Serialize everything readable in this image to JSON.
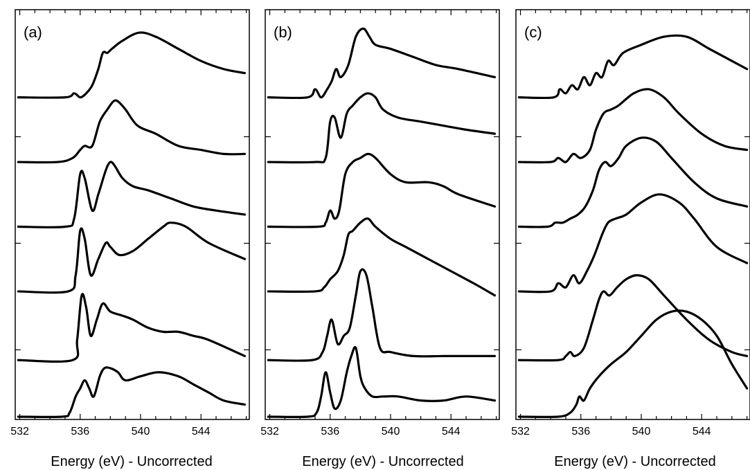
{
  "chart_data": [
    {
      "type": "line",
      "panel_label": "(a)",
      "xlabel": "Energy (eV) - Uncorrected",
      "ylabel": "",
      "xticks": [
        532,
        536,
        540,
        544
      ],
      "xlim": [
        531.7,
        547.2
      ],
      "ylim": [
        0,
        1
      ],
      "grid": false,
      "legend": "none",
      "color": "#000000",
      "series": [
        {
          "x": [
            531.9,
            535.0,
            535.6,
            536.0,
            536.4,
            536.8,
            537.2,
            537.5,
            537.8,
            538.1,
            538.8,
            539.9,
            541.0,
            542.5,
            544.0,
            545.5,
            546.9
          ],
          "values": [
            0.79,
            0.79,
            0.8,
            0.79,
            0.8,
            0.82,
            0.86,
            0.9,
            0.9,
            0.91,
            0.93,
            0.95,
            0.94,
            0.91,
            0.88,
            0.86,
            0.85
          ]
        },
        {
          "x": [
            531.9,
            534.5,
            535.5,
            536.0,
            536.3,
            536.8,
            537.3,
            537.8,
            538.2,
            538.5,
            539.0,
            539.8,
            541.0,
            542.5,
            544.0,
            545.5,
            546.9
          ],
          "values": [
            0.63,
            0.63,
            0.64,
            0.66,
            0.67,
            0.67,
            0.73,
            0.76,
            0.78,
            0.78,
            0.76,
            0.72,
            0.7,
            0.67,
            0.66,
            0.65,
            0.65
          ]
        },
        {
          "x": [
            531.9,
            535.0,
            535.6,
            536.0,
            536.3,
            536.8,
            537.2,
            537.7,
            538.0,
            538.3,
            538.8,
            539.5,
            540.5,
            542.0,
            543.5,
            545.0,
            546.9
          ],
          "values": [
            0.47,
            0.47,
            0.49,
            0.6,
            0.59,
            0.51,
            0.55,
            0.61,
            0.63,
            0.62,
            0.59,
            0.57,
            0.56,
            0.54,
            0.52,
            0.51,
            0.5
          ]
        },
        {
          "x": [
            531.9,
            535.2,
            535.7,
            536.0,
            536.3,
            536.7,
            537.2,
            537.7,
            538.0,
            538.6,
            539.5,
            540.5,
            541.5,
            542.0,
            543.0,
            544.5,
            546.9
          ],
          "values": [
            0.31,
            0.31,
            0.35,
            0.46,
            0.44,
            0.35,
            0.39,
            0.43,
            0.42,
            0.4,
            0.41,
            0.44,
            0.47,
            0.48,
            0.47,
            0.43,
            0.39
          ]
        },
        {
          "x": [
            531.9,
            535.5,
            535.8,
            536.1,
            536.4,
            536.7,
            537.1,
            537.5,
            538.0,
            538.8,
            539.5,
            540.5,
            541.5,
            542.5,
            543.5,
            544.5,
            546.9
          ],
          "values": [
            0.14,
            0.14,
            0.19,
            0.3,
            0.27,
            0.2,
            0.24,
            0.28,
            0.26,
            0.25,
            0.24,
            0.22,
            0.21,
            0.21,
            0.2,
            0.19,
            0.15
          ]
        },
        {
          "x": [
            531.9,
            534.8,
            535.3,
            535.7,
            536.0,
            536.3,
            536.6,
            536.9,
            537.3,
            537.6,
            538.0,
            538.5,
            539.0,
            540.0,
            541.2,
            542.5,
            543.5,
            544.5,
            545.5,
            546.9
          ],
          "values": [
            0.0,
            0.0,
            0.01,
            0.05,
            0.07,
            0.09,
            0.07,
            0.05,
            0.1,
            0.12,
            0.12,
            0.11,
            0.09,
            0.1,
            0.11,
            0.1,
            0.08,
            0.06,
            0.04,
            0.03
          ]
        }
      ]
    },
    {
      "type": "line",
      "panel_label": "(b)",
      "xlabel": "Energy (eV) - Uncorrected",
      "ylabel": "",
      "xticks": [
        532,
        536,
        540,
        544
      ],
      "xlim": [
        531.7,
        547.2
      ],
      "ylim": [
        0,
        1
      ],
      "grid": false,
      "legend": "none",
      "color": "#000000",
      "series": [
        {
          "x": [
            531.9,
            534.5,
            535.0,
            535.4,
            535.8,
            536.1,
            536.4,
            536.7,
            537.2,
            537.7,
            538.2,
            538.6,
            539.0,
            540.0,
            541.5,
            543.0,
            544.5,
            546.9
          ],
          "values": [
            0.79,
            0.79,
            0.81,
            0.79,
            0.81,
            0.83,
            0.86,
            0.84,
            0.87,
            0.94,
            0.96,
            0.94,
            0.92,
            0.91,
            0.89,
            0.87,
            0.86,
            0.84
          ]
        },
        {
          "x": [
            531.9,
            535.0,
            535.7,
            536.0,
            536.3,
            536.7,
            537.1,
            537.5,
            538.0,
            538.5,
            539.0,
            539.5,
            540.5,
            542.0,
            543.5,
            545.0,
            546.9
          ],
          "values": [
            0.63,
            0.63,
            0.64,
            0.73,
            0.74,
            0.69,
            0.75,
            0.77,
            0.79,
            0.8,
            0.79,
            0.76,
            0.74,
            0.73,
            0.72,
            0.71,
            0.7
          ]
        },
        {
          "x": [
            531.9,
            535.2,
            535.7,
            536.0,
            536.3,
            536.6,
            537.0,
            537.5,
            538.0,
            538.5,
            539.0,
            540.0,
            541.0,
            542.5,
            543.5,
            544.5,
            546.9
          ],
          "values": [
            0.47,
            0.47,
            0.48,
            0.51,
            0.49,
            0.51,
            0.6,
            0.63,
            0.64,
            0.65,
            0.64,
            0.6,
            0.58,
            0.58,
            0.57,
            0.55,
            0.52
          ]
        },
        {
          "x": [
            531.9,
            535.0,
            535.6,
            536.0,
            536.5,
            536.9,
            537.2,
            537.5,
            538.0,
            538.5,
            539.0,
            540.0,
            541.0,
            542.5,
            544.0,
            545.5,
            546.9
          ],
          "values": [
            0.31,
            0.31,
            0.32,
            0.34,
            0.36,
            0.4,
            0.45,
            0.46,
            0.48,
            0.49,
            0.47,
            0.44,
            0.42,
            0.39,
            0.36,
            0.33,
            0.3
          ]
        },
        {
          "x": [
            531.9,
            534.8,
            535.5,
            535.8,
            536.1,
            536.5,
            536.9,
            537.3,
            537.7,
            538.0,
            538.4,
            538.8,
            539.3,
            540.0,
            541.5,
            543.5,
            545.5,
            546.9
          ],
          "values": [
            0.14,
            0.14,
            0.16,
            0.2,
            0.24,
            0.18,
            0.2,
            0.22,
            0.3,
            0.36,
            0.35,
            0.27,
            0.17,
            0.16,
            0.15,
            0.15,
            0.15,
            0.15
          ]
        },
        {
          "x": [
            531.9,
            534.5,
            535.1,
            535.4,
            535.7,
            536.0,
            536.3,
            536.7,
            537.1,
            537.4,
            537.7,
            538.0,
            538.3,
            538.8,
            539.5,
            540.5,
            542.0,
            543.5,
            545.0,
            546.9
          ],
          "values": [
            0.0,
            0.0,
            0.01,
            0.05,
            0.11,
            0.06,
            0.02,
            0.04,
            0.11,
            0.15,
            0.17,
            0.1,
            0.07,
            0.05,
            0.05,
            0.05,
            0.04,
            0.04,
            0.05,
            0.04
          ]
        }
      ]
    },
    {
      "type": "line",
      "panel_label": "(c)",
      "xlabel": "Energy (eV) - Uncorrected",
      "ylabel": "",
      "xticks": [
        532,
        536,
        540,
        544
      ],
      "xlim": [
        531.7,
        547.2
      ],
      "ylim": [
        0,
        1
      ],
      "grid": false,
      "legend": "none",
      "color": "#000000",
      "series": [
        {
          "x": [
            531.9,
            534.2,
            534.6,
            535.0,
            535.4,
            535.8,
            536.2,
            536.6,
            537.0,
            537.4,
            537.8,
            538.2,
            538.8,
            540.0,
            541.5,
            543.0,
            544.5,
            546.0,
            547.0
          ],
          "values": [
            0.79,
            0.79,
            0.81,
            0.8,
            0.82,
            0.81,
            0.84,
            0.82,
            0.85,
            0.84,
            0.88,
            0.87,
            0.9,
            0.92,
            0.94,
            0.94,
            0.91,
            0.88,
            0.86
          ]
        },
        {
          "x": [
            531.9,
            534.0,
            534.5,
            535.0,
            535.5,
            536.0,
            536.6,
            537.0,
            537.5,
            538.0,
            538.5,
            539.5,
            540.5,
            541.5,
            542.5,
            544.0,
            545.5,
            547.0
          ],
          "values": [
            0.63,
            0.63,
            0.64,
            0.63,
            0.65,
            0.64,
            0.66,
            0.71,
            0.75,
            0.76,
            0.77,
            0.8,
            0.81,
            0.79,
            0.75,
            0.7,
            0.67,
            0.66
          ]
        },
        {
          "x": [
            531.9,
            533.8,
            534.3,
            534.8,
            535.3,
            535.8,
            536.3,
            536.8,
            537.2,
            537.6,
            538.0,
            538.5,
            539.0,
            540.0,
            541.0,
            542.0,
            543.5,
            545.0,
            547.0
          ],
          "values": [
            0.47,
            0.47,
            0.48,
            0.48,
            0.49,
            0.5,
            0.52,
            0.56,
            0.61,
            0.63,
            0.62,
            0.64,
            0.67,
            0.69,
            0.68,
            0.64,
            0.58,
            0.54,
            0.52
          ]
        },
        {
          "x": [
            531.9,
            534.0,
            534.5,
            535.0,
            535.5,
            535.9,
            536.4,
            536.9,
            537.4,
            537.8,
            538.3,
            539.0,
            540.0,
            541.2,
            542.5,
            543.5,
            545.0,
            547.0
          ],
          "values": [
            0.31,
            0.31,
            0.33,
            0.32,
            0.35,
            0.33,
            0.36,
            0.4,
            0.45,
            0.48,
            0.49,
            0.5,
            0.53,
            0.55,
            0.53,
            0.49,
            0.42,
            0.38
          ]
        },
        {
          "x": [
            531.9,
            534.5,
            535.0,
            535.3,
            535.6,
            536.2,
            536.8,
            537.2,
            537.5,
            537.9,
            538.4,
            539.0,
            539.7,
            540.5,
            541.5,
            543.0,
            544.5,
            546.0,
            547.0
          ],
          "values": [
            0.14,
            0.14,
            0.15,
            0.16,
            0.15,
            0.17,
            0.24,
            0.29,
            0.31,
            0.3,
            0.32,
            0.34,
            0.35,
            0.34,
            0.3,
            0.24,
            0.19,
            0.16,
            0.15
          ]
        },
        {
          "x": [
            531.9,
            534.5,
            535.3,
            535.7,
            535.9,
            536.2,
            536.6,
            537.2,
            538.0,
            539.0,
            540.0,
            541.0,
            542.0,
            543.0,
            544.0,
            545.0,
            546.0,
            547.0
          ],
          "values": [
            0.0,
            0.0,
            0.01,
            0.03,
            0.05,
            0.04,
            0.07,
            0.1,
            0.13,
            0.16,
            0.2,
            0.24,
            0.26,
            0.26,
            0.24,
            0.2,
            0.13,
            0.07
          ]
        }
      ]
    }
  ]
}
